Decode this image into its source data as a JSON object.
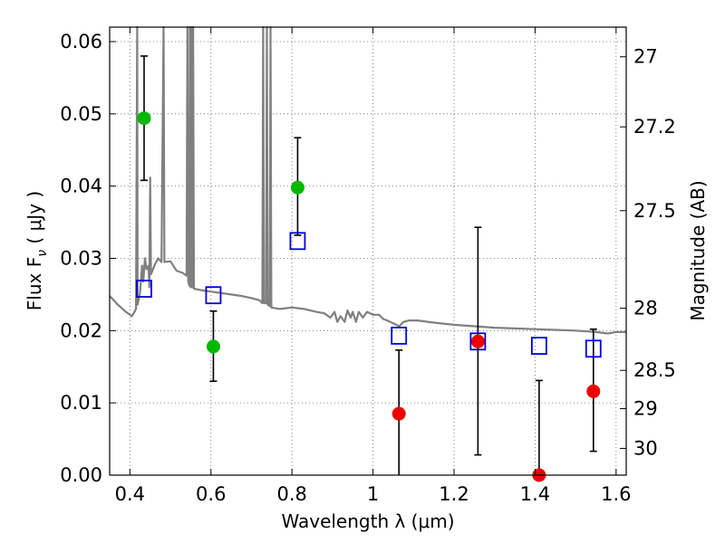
{
  "chart_data": {
    "type": "scatter",
    "xlabel": "Wavelength  λ (μm)",
    "ylabel_left": "Flux  F",
    "ylabel_left_sub": "ν",
    "ylabel_left_unit": "  ( μJy )",
    "ylabel_right": "Magnitude (AB)",
    "xlim": [
      0.35,
      1.625
    ],
    "ylim": [
      0.0,
      0.062
    ],
    "grid": true,
    "x_ticks": [
      {
        "value": 0.4,
        "label": "0.4"
      },
      {
        "value": 0.6,
        "label": "0.6"
      },
      {
        "value": 0.8,
        "label": "0.8"
      },
      {
        "value": 1.0,
        "label": "1"
      },
      {
        "value": 1.2,
        "label": "1.2"
      },
      {
        "value": 1.4,
        "label": "1.4"
      },
      {
        "value": 1.6,
        "label": "1.6"
      }
    ],
    "y_ticks": [
      {
        "value": 0.0,
        "label": "0.00"
      },
      {
        "value": 0.01,
        "label": "0.01"
      },
      {
        "value": 0.02,
        "label": "0.02"
      },
      {
        "value": 0.03,
        "label": "0.03"
      },
      {
        "value": 0.04,
        "label": "0.04"
      },
      {
        "value": 0.05,
        "label": "0.05"
      },
      {
        "value": 0.06,
        "label": "0.06"
      }
    ],
    "right_ticks": [
      {
        "label": "27",
        "flux": 0.0579
      },
      {
        "label": "27.2",
        "flux": 0.0482
      },
      {
        "label": "27.5",
        "flux": 0.0366
      },
      {
        "label": "28",
        "flux": 0.0231
      },
      {
        "label": "28.5",
        "flux": 0.0145
      },
      {
        "label": "29",
        "flux": 0.0092
      },
      {
        "label": "30",
        "flux": 0.0037
      }
    ],
    "series": [
      {
        "color": "#00b800",
        "marker": "circle",
        "points": [
          {
            "x": 0.435,
            "y": 0.0494,
            "lo": 0.0408,
            "hi": 0.058
          },
          {
            "x": 0.606,
            "y": 0.0178,
            "lo": 0.013,
            "hi": 0.0227
          },
          {
            "x": 0.814,
            "y": 0.0398,
            "lo": 0.0332,
            "hi": 0.0467
          }
        ]
      },
      {
        "color": "#ee0000",
        "marker": "circle",
        "points": [
          {
            "x": 1.064,
            "y": 0.0085,
            "lo": 0.0,
            "hi": 0.0173
          },
          {
            "x": 1.259,
            "y": 0.0185,
            "lo": 0.0028,
            "hi": 0.0343
          },
          {
            "x": 1.41,
            "y": 0.0,
            "lo": 0.0,
            "hi": 0.0131
          },
          {
            "x": 1.544,
            "y": 0.0116,
            "lo": 0.0033,
            "hi": 0.0202
          }
        ]
      },
      {
        "color": "#0000dd",
        "marker": "square",
        "points": [
          {
            "x": 0.435,
            "y": 0.0258
          },
          {
            "x": 0.606,
            "y": 0.0249
          },
          {
            "x": 0.814,
            "y": 0.0324
          },
          {
            "x": 1.064,
            "y": 0.0193
          },
          {
            "x": 1.259,
            "y": 0.0185
          },
          {
            "x": 1.41,
            "y": 0.0179
          },
          {
            "x": 1.544,
            "y": 0.0175
          }
        ]
      }
    ],
    "model_spectrum": {
      "color": "#808080",
      "points": [
        [
          0.35,
          0.0248
        ],
        [
          0.37,
          0.0236
        ],
        [
          0.39,
          0.0226
        ],
        [
          0.405,
          0.022
        ],
        [
          0.415,
          0.023
        ],
        [
          0.418,
          0.062
        ],
        [
          0.419,
          0.0236
        ],
        [
          0.425,
          0.0252
        ],
        [
          0.43,
          0.029
        ],
        [
          0.433,
          0.0268
        ],
        [
          0.437,
          0.03
        ],
        [
          0.441,
          0.0285
        ],
        [
          0.446,
          0.029
        ],
        [
          0.448,
          0.026
        ],
        [
          0.45,
          0.0412
        ],
        [
          0.452,
          0.0278
        ],
        [
          0.462,
          0.0292
        ],
        [
          0.47,
          0.03
        ],
        [
          0.478,
          0.0295
        ],
        [
          0.483,
          0.062
        ],
        [
          0.485,
          0.0295
        ],
        [
          0.5,
          0.0296
        ],
        [
          0.515,
          0.0283
        ],
        [
          0.53,
          0.028
        ],
        [
          0.54,
          0.0276
        ],
        [
          0.542,
          0.062
        ],
        [
          0.544,
          0.0268
        ],
        [
          0.547,
          0.0262
        ],
        [
          0.548,
          0.062
        ],
        [
          0.55,
          0.026
        ],
        [
          0.552,
          0.062
        ],
        [
          0.554,
          0.026
        ],
        [
          0.556,
          0.062
        ],
        [
          0.558,
          0.0258
        ],
        [
          0.575,
          0.0256
        ],
        [
          0.6,
          0.0254
        ],
        [
          0.625,
          0.0252
        ],
        [
          0.65,
          0.025
        ],
        [
          0.675,
          0.0248
        ],
        [
          0.7,
          0.0245
        ],
        [
          0.72,
          0.0242
        ],
        [
          0.727,
          0.0238
        ],
        [
          0.729,
          0.062
        ],
        [
          0.731,
          0.0238
        ],
        [
          0.736,
          0.0238
        ],
        [
          0.738,
          0.062
        ],
        [
          0.74,
          0.0236
        ],
        [
          0.745,
          0.0234
        ],
        [
          0.747,
          0.062
        ],
        [
          0.749,
          0.0232
        ],
        [
          0.77,
          0.023
        ],
        [
          0.8,
          0.0232
        ],
        [
          0.83,
          0.023
        ],
        [
          0.86,
          0.0226
        ],
        [
          0.88,
          0.0224
        ],
        [
          0.895,
          0.0218
        ],
        [
          0.905,
          0.0226
        ],
        [
          0.912,
          0.0212
        ],
        [
          0.92,
          0.022
        ],
        [
          0.93,
          0.0212
        ],
        [
          0.937,
          0.0228
        ],
        [
          0.945,
          0.0218
        ],
        [
          0.95,
          0.0226
        ],
        [
          0.958,
          0.0212
        ],
        [
          0.965,
          0.0226
        ],
        [
          0.975,
          0.0218
        ],
        [
          0.985,
          0.0226
        ],
        [
          1.0,
          0.0222
        ],
        [
          1.015,
          0.0222
        ],
        [
          1.025,
          0.0216
        ],
        [
          1.035,
          0.0214
        ],
        [
          1.05,
          0.021
        ],
        [
          1.065,
          0.0206
        ],
        [
          1.075,
          0.0212
        ],
        [
          1.09,
          0.0214
        ],
        [
          1.11,
          0.0214
        ],
        [
          1.15,
          0.0211
        ],
        [
          1.2,
          0.0208
        ],
        [
          1.25,
          0.0206
        ],
        [
          1.3,
          0.0204
        ],
        [
          1.35,
          0.0203
        ],
        [
          1.4,
          0.0202
        ],
        [
          1.45,
          0.0201
        ],
        [
          1.5,
          0.02
        ],
        [
          1.55,
          0.0198
        ],
        [
          1.58,
          0.0196
        ],
        [
          1.6,
          0.0198
        ],
        [
          1.625,
          0.0198
        ]
      ]
    }
  }
}
